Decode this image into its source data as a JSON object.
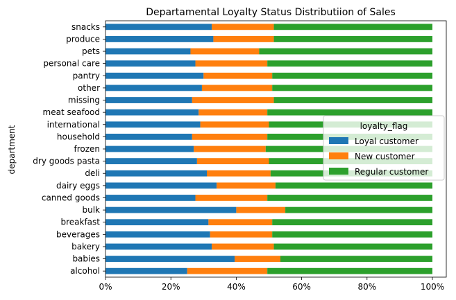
{
  "chart_data": {
    "type": "bar",
    "orientation": "horizontal",
    "stacked": true,
    "title": "Departamental Loyalty Status Distributiion of Sales",
    "ylabel": "department",
    "xlabel": "",
    "xlim": [
      0,
      1
    ],
    "xticks": [
      "0%",
      "20%",
      "40%",
      "60%",
      "80%",
      "100%"
    ],
    "grid": false,
    "legend": {
      "title": "loyalty_flag",
      "placement": "center-right"
    },
    "categories": [
      "alcohol",
      "babies",
      "bakery",
      "beverages",
      "breakfast",
      "bulk",
      "canned goods",
      "dairy eggs",
      "deli",
      "dry goods pasta",
      "frozen",
      "household",
      "international",
      "meat seafood",
      "missing",
      "other",
      "pantry",
      "personal care",
      "pets",
      "produce",
      "snacks"
    ],
    "series": [
      {
        "name": "Loyal customer",
        "color": "#1f77b4",
        "values": [
          0.25,
          0.395,
          0.325,
          0.32,
          0.315,
          0.4,
          0.275,
          0.34,
          0.31,
          0.28,
          0.27,
          0.265,
          0.29,
          0.285,
          0.265,
          0.295,
          0.3,
          0.275,
          0.26,
          0.33,
          0.325
        ]
      },
      {
        "name": "New customer",
        "color": "#ff7f0e",
        "values": [
          0.245,
          0.14,
          0.19,
          0.19,
          0.195,
          0.15,
          0.22,
          0.18,
          0.195,
          0.22,
          0.22,
          0.23,
          0.21,
          0.21,
          0.25,
          0.215,
          0.21,
          0.22,
          0.21,
          0.185,
          0.19
        ]
      },
      {
        "name": "Regular customer",
        "color": "#2ca02c",
        "values": [
          0.505,
          0.465,
          0.485,
          0.49,
          0.49,
          0.45,
          0.505,
          0.48,
          0.495,
          0.5,
          0.51,
          0.505,
          0.5,
          0.505,
          0.485,
          0.49,
          0.49,
          0.505,
          0.53,
          0.485,
          0.485
        ]
      }
    ]
  }
}
